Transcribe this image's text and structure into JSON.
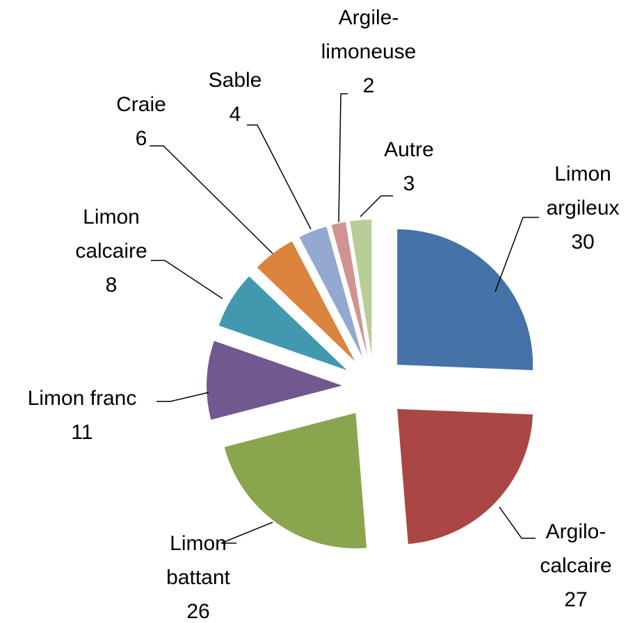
{
  "chart_data": {
    "type": "pie",
    "categories": [
      "Limon argileux",
      "Argilo-calcaire",
      "Limon battant",
      "Limon franc",
      "Limon calcaire",
      "Craie",
      "Sable",
      "Argile-limoneuse",
      "Autre"
    ],
    "values": [
      30,
      27,
      26,
      11,
      8,
      6,
      4,
      2,
      3
    ],
    "colors": [
      "#4572a7",
      "#aa4643",
      "#89a54e",
      "#71588f",
      "#4198af",
      "#db843d",
      "#93a9cf",
      "#d19392",
      "#b9cd96"
    ],
    "exploded": true
  }
}
